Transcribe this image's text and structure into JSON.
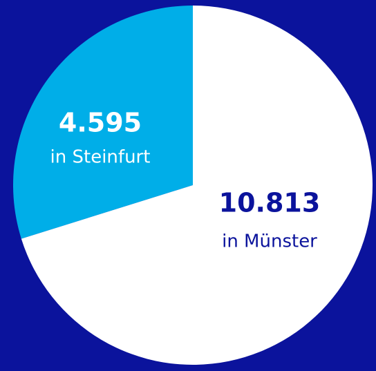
{
  "chart_data": {
    "type": "pie",
    "categories": [
      "in Steinfurt",
      "in Münster"
    ],
    "values": [
      4595,
      10813
    ],
    "value_labels": [
      "4.595",
      "10.813"
    ],
    "colors": [
      "#00aee8",
      "#ffffff"
    ],
    "label_colors": [
      "#ffffff",
      "#0b139c"
    ],
    "background": "#0b139c"
  }
}
